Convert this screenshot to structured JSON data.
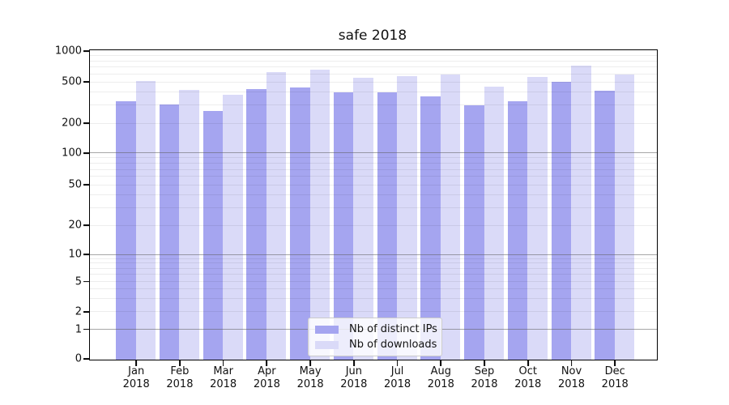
{
  "chart_data": {
    "type": "bar",
    "title": "safe 2018",
    "categories": [
      "Jan",
      "Feb",
      "Mar",
      "Apr",
      "May",
      "Jun",
      "Jul",
      "Aug",
      "Sep",
      "Oct",
      "Nov",
      "Dec"
    ],
    "category_year": "2018",
    "series": [
      {
        "name": "Nb of distinct IPs",
        "color": "#a5a5f0",
        "values": [
          325,
          300,
          260,
          420,
          440,
          395,
          395,
          360,
          295,
          325,
          500,
          410
        ]
      },
      {
        "name": "Nb of downloads",
        "color": "#dadaf8",
        "values": [
          505,
          415,
          375,
          620,
          650,
          545,
          565,
          585,
          445,
          560,
          715,
          585
        ]
      }
    ],
    "yscale": "symlog",
    "ylim": [
      0,
      1000
    ],
    "yticks": [
      0,
      1,
      2,
      5,
      10,
      20,
      50,
      100,
      200,
      500,
      1000
    ],
    "grid": "on",
    "legend_position": "lower center"
  }
}
